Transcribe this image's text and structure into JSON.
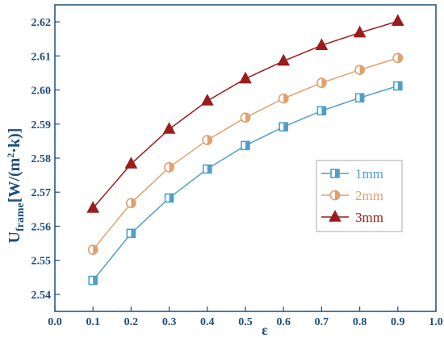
{
  "chart_data": {
    "type": "line",
    "xlabel": "ε",
    "ylabel": {
      "main": "U",
      "subscript": "frame",
      "unit_open": "[W/(m",
      "unit_sup": "2",
      "unit_close": "·k)]"
    },
    "xlim": [
      0.0,
      1.0
    ],
    "ylim": [
      2.535,
      2.625
    ],
    "x_ticks": [
      "0.0",
      "0.1",
      "0.2",
      "0.3",
      "0.4",
      "0.5",
      "0.6",
      "0.7",
      "0.8",
      "0.9",
      "1.0"
    ],
    "y_ticks": [
      "2.54",
      "2.55",
      "2.56",
      "2.57",
      "2.58",
      "2.59",
      "2.60",
      "2.61",
      "2.62"
    ],
    "grid": false,
    "legend_position": "right",
    "x": [
      0.1,
      0.2,
      0.3,
      0.4,
      0.5,
      0.6,
      0.7,
      0.8,
      0.9
    ],
    "series": [
      {
        "name": "1mm",
        "marker": "half-filled-square",
        "color": "#4fa0c8",
        "values": [
          2.5441,
          2.5579,
          2.5683,
          2.5768,
          2.5837,
          2.5892,
          2.5939,
          2.5977,
          2.6012
        ]
      },
      {
        "name": "2mm",
        "marker": "half-filled-circle",
        "color": "#e0a070",
        "values": [
          2.5531,
          2.5668,
          2.5773,
          2.5853,
          2.5919,
          2.5975,
          2.6021,
          2.6059,
          2.6094
        ]
      },
      {
        "name": "3mm",
        "marker": "filled-triangle",
        "color": "#9b1c1c",
        "values": [
          2.5653,
          2.5783,
          2.5885,
          2.5968,
          2.6033,
          2.6085,
          2.6131,
          2.6168,
          2.6202
        ]
      }
    ]
  }
}
